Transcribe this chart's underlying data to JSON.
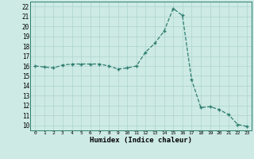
{
  "x": [
    0,
    1,
    2,
    3,
    4,
    5,
    6,
    7,
    8,
    9,
    10,
    11,
    12,
    13,
    14,
    15,
    16,
    17,
    18,
    19,
    20,
    21,
    22,
    23
  ],
  "y": [
    16.0,
    15.9,
    15.8,
    16.1,
    16.2,
    16.2,
    16.2,
    16.2,
    16.0,
    15.7,
    15.8,
    16.0,
    17.4,
    18.3,
    19.5,
    21.8,
    21.1,
    14.6,
    11.8,
    11.9,
    11.6,
    11.1,
    10.1,
    9.9
  ],
  "xlim": [
    -0.5,
    23.5
  ],
  "ylim": [
    9.5,
    22.5
  ],
  "yticks": [
    10,
    11,
    12,
    13,
    14,
    15,
    16,
    17,
    18,
    19,
    20,
    21,
    22
  ],
  "xticks": [
    0,
    1,
    2,
    3,
    4,
    5,
    6,
    7,
    8,
    9,
    10,
    11,
    12,
    13,
    14,
    15,
    16,
    17,
    18,
    19,
    20,
    21,
    22,
    23
  ],
  "xlabel": "Humidex (Indice chaleur)",
  "line_color": "#2e7d6e",
  "marker": "+",
  "marker_size": 3,
  "bg_color": "#cdeae5",
  "grid_color": "#aed4ce",
  "title": ""
}
